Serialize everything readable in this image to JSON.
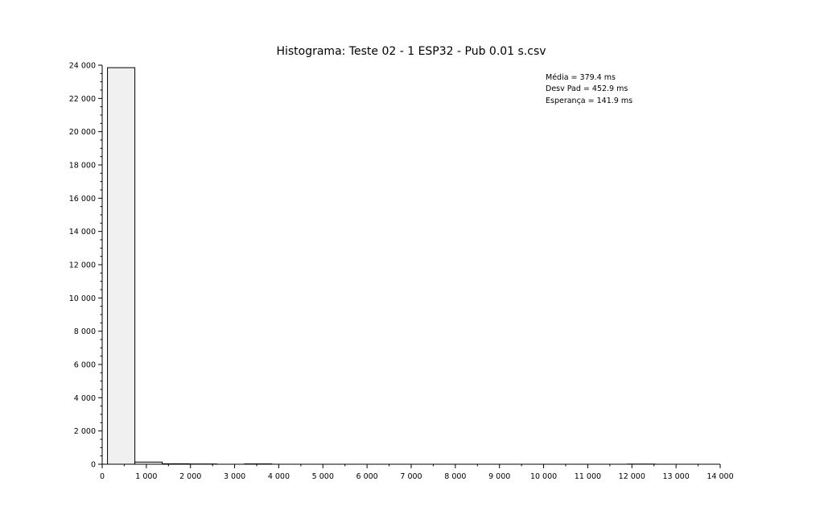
{
  "chart_data": {
    "type": "bar",
    "title": "Histograma: Teste 02 - 1 ESP32 - Pub 0.01 s.csv",
    "xlabel": "",
    "ylabel": "",
    "xlim": [
      0,
      14000
    ],
    "ylim": [
      0,
      24000
    ],
    "grid": false,
    "x_ticks": [
      0,
      1000,
      2000,
      3000,
      4000,
      5000,
      6000,
      7000,
      8000,
      9000,
      10000,
      11000,
      12000,
      13000,
      14000
    ],
    "x_tick_labels": [
      "0",
      "1 000",
      "2 000",
      "3 000",
      "4 000",
      "5 000",
      "6 000",
      "7 000",
      "8 000",
      "9 000",
      "10 000",
      "11 000",
      "12 000",
      "13 000",
      "14 000"
    ],
    "y_ticks": [
      0,
      2000,
      4000,
      6000,
      8000,
      10000,
      12000,
      14000,
      16000,
      18000,
      20000,
      22000,
      24000
    ],
    "y_tick_labels": [
      "0",
      "2 000",
      "4 000",
      "6 000",
      "8 000",
      "10 000",
      "12 000",
      "14 000",
      "16 000",
      "18 000",
      "20 000",
      "22 000",
      "24 000"
    ],
    "bins": [
      {
        "start": 120,
        "end": 740,
        "count": 23850
      },
      {
        "start": 740,
        "end": 1360,
        "count": 130
      },
      {
        "start": 1360,
        "end": 1980,
        "count": 25
      },
      {
        "start": 1980,
        "end": 2600,
        "count": 15
      },
      {
        "start": 2600,
        "end": 3220,
        "count": 0
      },
      {
        "start": 3220,
        "end": 3840,
        "count": 20
      },
      {
        "start": 3840,
        "end": 4460,
        "count": 0
      },
      {
        "start": 4460,
        "end": 5080,
        "count": 0
      },
      {
        "start": 5080,
        "end": 5700,
        "count": 0
      },
      {
        "start": 5700,
        "end": 6320,
        "count": 0
      },
      {
        "start": 6320,
        "end": 6940,
        "count": 0
      },
      {
        "start": 6940,
        "end": 7560,
        "count": 0
      },
      {
        "start": 7560,
        "end": 8180,
        "count": 0
      },
      {
        "start": 8180,
        "end": 8800,
        "count": 0
      },
      {
        "start": 8800,
        "end": 9420,
        "count": 0
      },
      {
        "start": 9420,
        "end": 10040,
        "count": 0
      },
      {
        "start": 10040,
        "end": 10660,
        "count": 0
      },
      {
        "start": 10660,
        "end": 11280,
        "count": 0
      },
      {
        "start": 11280,
        "end": 11900,
        "count": 0
      },
      {
        "start": 11900,
        "end": 12520,
        "count": 10
      }
    ],
    "annotations": [
      "Média = 379.4 ms",
      "Desv Pad = 452.9 ms",
      "Esperança = 141.9 ms"
    ],
    "colors": {
      "bar_fill": "#f0f0f0",
      "bar_stroke": "#000000",
      "axis": "#000000"
    }
  }
}
